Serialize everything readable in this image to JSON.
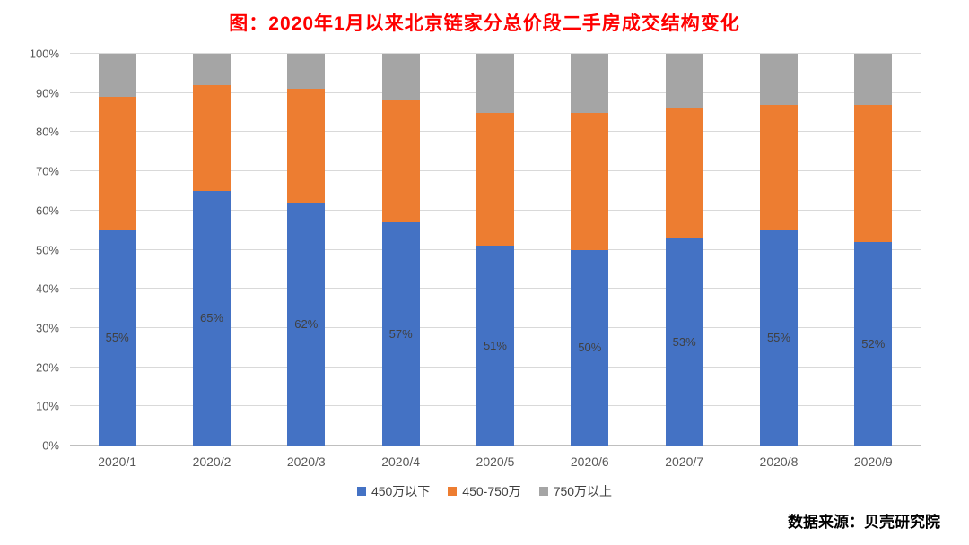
{
  "title": "图：2020年1月以来北京链家分总价段二手房成交结构变化",
  "source": "数据来源：贝壳研究院",
  "colors": {
    "title": "#ff0000",
    "series_blue": "#4472c4",
    "series_orange": "#ed7d31",
    "series_gray": "#a5a5a5",
    "axis_text": "#595959",
    "gridline": "#d9d9d9"
  },
  "chart_data": {
    "type": "bar",
    "stacked": true,
    "percent_stacked": true,
    "title": "图：2020年1月以来北京链家分总价段二手房成交结构变化",
    "categories": [
      "2020/1",
      "2020/2",
      "2020/3",
      "2020/4",
      "2020/5",
      "2020/6",
      "2020/7",
      "2020/8",
      "2020/9"
    ],
    "series": [
      {
        "name": "450万以下",
        "color": "#4472c4",
        "values": [
          55,
          65,
          62,
          57,
          51,
          50,
          53,
          55,
          52
        ],
        "labels": [
          "55%",
          "65%",
          "62%",
          "57%",
          "51%",
          "50%",
          "53%",
          "55%",
          "52%"
        ]
      },
      {
        "name": "450-750万",
        "color": "#ed7d31",
        "values": [
          34,
          27,
          29,
          31,
          34,
          35,
          33,
          32,
          35
        ]
      },
      {
        "name": "750万以上",
        "color": "#a5a5a5",
        "values": [
          11,
          8,
          9,
          12,
          15,
          15,
          14,
          13,
          13
        ]
      }
    ],
    "xlabel": "",
    "ylabel": "",
    "ylim": [
      0,
      100
    ],
    "ytick_labels": [
      "0%",
      "10%",
      "20%",
      "30%",
      "40%",
      "50%",
      "60%",
      "70%",
      "80%",
      "90%",
      "100%"
    ],
    "grid": true,
    "legend_position": "bottom"
  }
}
